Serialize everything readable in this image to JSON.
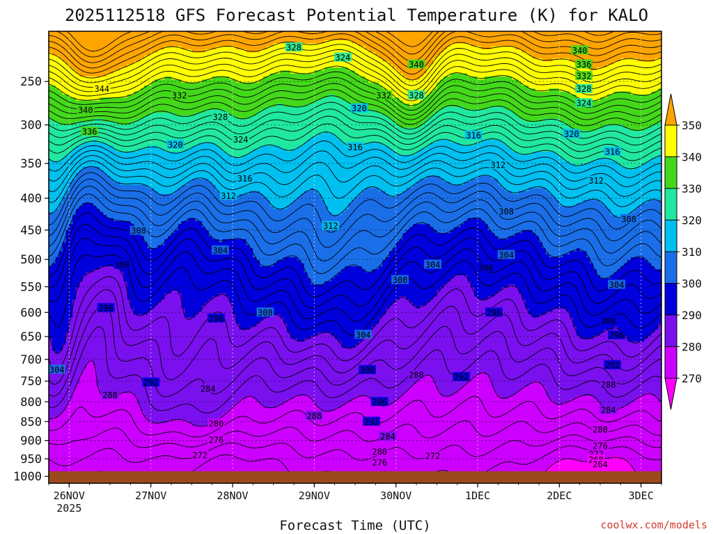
{
  "chart_data": {
    "type": "contour",
    "title": "2025112518 GFS Forecast Potential Temperature (K) for KALO",
    "xlabel": "Forecast Time (UTC)",
    "ylabel": "",
    "credit": "coolwx.com/models",
    "x_ticks": [
      {
        "label": "26NOV",
        "sublabel": "2025",
        "t": 0.25
      },
      {
        "label": "27NOV",
        "t": 1.25
      },
      {
        "label": "28NOV",
        "t": 2.25
      },
      {
        "label": "29NOV",
        "t": 3.25
      },
      {
        "label": "30NOV",
        "t": 4.25
      },
      {
        "label": "1DEC",
        "t": 5.25
      },
      {
        "label": "2DEC",
        "t": 6.25
      },
      {
        "label": "3DEC",
        "t": 7.25
      }
    ],
    "xlim_days": [
      0,
      7.5
    ],
    "y_ticks_hpa": [
      250,
      300,
      350,
      400,
      450,
      500,
      550,
      600,
      650,
      700,
      750,
      800,
      850,
      900,
      950,
      1000
    ],
    "ylim_hpa": [
      1020,
      200
    ],
    "surface_pressure_hpa": 985,
    "colorbar": {
      "levels": [
        270,
        280,
        290,
        300,
        310,
        320,
        330,
        340,
        350
      ],
      "colors": [
        "#ff00ff",
        "#cc00ff",
        "#7a10ee",
        "#0000dd",
        "#1a6fe8",
        "#00c0f0",
        "#20e8a0",
        "#44d81a",
        "#ffff00",
        "#ffa500"
      ]
    },
    "contour_interval_K": 2,
    "contour_labels": [
      {
        "v": 328,
        "t": 3.0,
        "p": 215
      },
      {
        "v": 324,
        "t": 3.6,
        "p": 225
      },
      {
        "v": 340,
        "t": 4.5,
        "p": 232
      },
      {
        "v": 340,
        "t": 6.5,
        "p": 218
      },
      {
        "v": 336,
        "t": 6.55,
        "p": 232
      },
      {
        "v": 332,
        "t": 6.55,
        "p": 244
      },
      {
        "v": 328,
        "t": 6.55,
        "p": 258
      },
      {
        "v": 324,
        "t": 6.55,
        "p": 274
      },
      {
        "v": 344,
        "t": 0.65,
        "p": 258
      },
      {
        "v": 340,
        "t": 0.45,
        "p": 282
      },
      {
        "v": 336,
        "t": 0.5,
        "p": 308
      },
      {
        "v": 332,
        "t": 1.6,
        "p": 265
      },
      {
        "v": 332,
        "t": 4.1,
        "p": 265
      },
      {
        "v": 328,
        "t": 4.5,
        "p": 265
      },
      {
        "v": 320,
        "t": 3.8,
        "p": 280
      },
      {
        "v": 328,
        "t": 2.1,
        "p": 290
      },
      {
        "v": 324,
        "t": 2.35,
        "p": 318
      },
      {
        "v": 320,
        "t": 1.55,
        "p": 325
      },
      {
        "v": 316,
        "t": 3.75,
        "p": 328
      },
      {
        "v": 316,
        "t": 5.2,
        "p": 313
      },
      {
        "v": 320,
        "t": 6.4,
        "p": 311
      },
      {
        "v": 316,
        "t": 6.9,
        "p": 334
      },
      {
        "v": 312,
        "t": 5.5,
        "p": 352
      },
      {
        "v": 312,
        "t": 6.7,
        "p": 374
      },
      {
        "v": 316,
        "t": 2.4,
        "p": 371
      },
      {
        "v": 312,
        "t": 2.2,
        "p": 396
      },
      {
        "v": 308,
        "t": 5.6,
        "p": 420
      },
      {
        "v": 308,
        "t": 7.1,
        "p": 432
      },
      {
        "v": 312,
        "t": 3.45,
        "p": 443
      },
      {
        "v": 308,
        "t": 1.1,
        "p": 451
      },
      {
        "v": 304,
        "t": 2.1,
        "p": 484
      },
      {
        "v": 304,
        "t": 5.6,
        "p": 492
      },
      {
        "v": 300,
        "t": 0.9,
        "p": 509
      },
      {
        "v": 300,
        "t": 5.35,
        "p": 515
      },
      {
        "v": 304,
        "t": 4.7,
        "p": 509
      },
      {
        "v": 308,
        "t": 4.3,
        "p": 537
      },
      {
        "v": 304,
        "t": 6.95,
        "p": 546
      },
      {
        "v": 296,
        "t": 0.7,
        "p": 591
      },
      {
        "v": 296,
        "t": 2.05,
        "p": 612
      },
      {
        "v": 296,
        "t": 5.45,
        "p": 600
      },
      {
        "v": 308,
        "t": 2.65,
        "p": 600
      },
      {
        "v": 300,
        "t": 6.85,
        "p": 617
      },
      {
        "v": 304,
        "t": 3.85,
        "p": 646
      },
      {
        "v": 296,
        "t": 6.95,
        "p": 647
      },
      {
        "v": 304,
        "t": 0.1,
        "p": 723
      },
      {
        "v": 292,
        "t": 6.9,
        "p": 713
      },
      {
        "v": 300,
        "t": 3.9,
        "p": 724
      },
      {
        "v": 288,
        "t": 4.5,
        "p": 735
      },
      {
        "v": 292,
        "t": 5.05,
        "p": 740
      },
      {
        "v": 292,
        "t": 1.25,
        "p": 753
      },
      {
        "v": 288,
        "t": 6.85,
        "p": 758
      },
      {
        "v": 284,
        "t": 1.95,
        "p": 768
      },
      {
        "v": 288,
        "t": 0.75,
        "p": 783
      },
      {
        "v": 296,
        "t": 4.05,
        "p": 800
      },
      {
        "v": 284,
        "t": 6.85,
        "p": 820
      },
      {
        "v": 288,
        "t": 3.25,
        "p": 835
      },
      {
        "v": 292,
        "t": 3.95,
        "p": 850
      },
      {
        "v": 280,
        "t": 2.05,
        "p": 855
      },
      {
        "v": 280,
        "t": 6.75,
        "p": 870
      },
      {
        "v": 284,
        "t": 4.15,
        "p": 889
      },
      {
        "v": 276,
        "t": 2.05,
        "p": 898
      },
      {
        "v": 276,
        "t": 6.75,
        "p": 914
      },
      {
        "v": 280,
        "t": 4.05,
        "p": 930
      },
      {
        "v": 272,
        "t": 4.7,
        "p": 942
      },
      {
        "v": 272,
        "t": 1.85,
        "p": 940
      },
      {
        "v": 272,
        "t": 6.7,
        "p": 937
      },
      {
        "v": 268,
        "t": 6.7,
        "p": 952
      },
      {
        "v": 276,
        "t": 4.05,
        "p": 960
      },
      {
        "v": 264,
        "t": 6.75,
        "p": 965
      }
    ]
  }
}
